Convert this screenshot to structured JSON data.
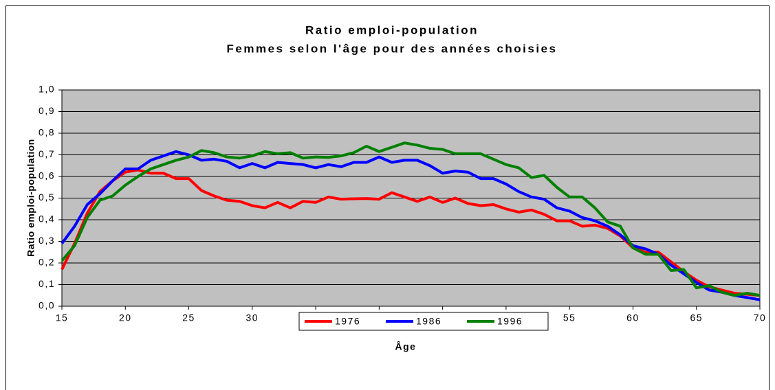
{
  "chart_data": {
    "type": "line",
    "title": "Ratio emploi-population",
    "subtitle": "Femmes selon l'âge pour des années choisies",
    "x_label": "Âge",
    "y_label": "Ratio emploi-population",
    "x": [
      15,
      16,
      17,
      18,
      19,
      20,
      21,
      22,
      23,
      24,
      25,
      26,
      27,
      28,
      29,
      30,
      31,
      32,
      33,
      34,
      35,
      36,
      37,
      38,
      39,
      40,
      41,
      42,
      43,
      44,
      45,
      46,
      47,
      48,
      49,
      50,
      51,
      52,
      53,
      54,
      55,
      56,
      57,
      58,
      59,
      60,
      61,
      62,
      63,
      64,
      65,
      66,
      67,
      68,
      69,
      70
    ],
    "series": [
      {
        "name": "1976",
        "color": "#ff0000",
        "values": [
          0.17,
          0.29,
          0.43,
          0.53,
          0.58,
          0.62,
          0.63,
          0.615,
          0.615,
          0.59,
          0.59,
          0.535,
          0.51,
          0.49,
          0.485,
          0.465,
          0.455,
          0.48,
          0.455,
          0.485,
          0.48,
          0.505,
          0.495,
          0.497,
          0.498,
          0.495,
          0.525,
          0.505,
          0.485,
          0.505,
          0.48,
          0.5,
          0.475,
          0.465,
          0.47,
          0.45,
          0.435,
          0.445,
          0.425,
          0.395,
          0.395,
          0.37,
          0.375,
          0.36,
          0.325,
          0.27,
          0.25,
          0.25,
          0.205,
          0.16,
          0.12,
          0.09,
          0.075,
          0.06,
          0.055,
          0.05
        ]
      },
      {
        "name": "1986",
        "color": "#0000ff",
        "values": [
          0.29,
          0.37,
          0.47,
          0.52,
          0.58,
          0.635,
          0.635,
          0.675,
          0.695,
          0.715,
          0.7,
          0.675,
          0.68,
          0.67,
          0.64,
          0.66,
          0.64,
          0.665,
          0.66,
          0.655,
          0.64,
          0.655,
          0.645,
          0.665,
          0.665,
          0.69,
          0.665,
          0.675,
          0.675,
          0.65,
          0.615,
          0.625,
          0.62,
          0.59,
          0.59,
          0.565,
          0.53,
          0.505,
          0.495,
          0.455,
          0.44,
          0.41,
          0.395,
          0.37,
          0.33,
          0.28,
          0.265,
          0.24,
          0.19,
          0.15,
          0.11,
          0.075,
          0.065,
          0.05,
          0.04,
          0.03
        ]
      },
      {
        "name": "1996",
        "color": "#008000",
        "values": [
          0.21,
          0.28,
          0.41,
          0.49,
          0.51,
          0.56,
          0.6,
          0.635,
          0.655,
          0.675,
          0.69,
          0.72,
          0.71,
          0.69,
          0.685,
          0.695,
          0.715,
          0.705,
          0.71,
          0.685,
          0.69,
          0.688,
          0.695,
          0.71,
          0.74,
          0.715,
          0.735,
          0.755,
          0.745,
          0.73,
          0.725,
          0.705,
          0.705,
          0.705,
          0.68,
          0.655,
          0.64,
          0.595,
          0.605,
          0.55,
          0.505,
          0.505,
          0.455,
          0.39,
          0.37,
          0.27,
          0.24,
          0.24,
          0.165,
          0.17,
          0.085,
          0.095,
          0.065,
          0.05,
          0.06,
          0.05
        ]
      }
    ],
    "xlim": [
      15,
      70
    ],
    "xticks": [
      15,
      20,
      25,
      30,
      35,
      40,
      45,
      50,
      55,
      60,
      65,
      70
    ],
    "ylim": [
      0,
      1
    ],
    "yticks": [
      {
        "value": 0,
        "label": "0,0"
      },
      {
        "value": 0.1,
        "label": "0,1"
      },
      {
        "value": 0.2,
        "label": "0,2"
      },
      {
        "value": 0.3,
        "label": "0,3"
      },
      {
        "value": 0.4,
        "label": "0,4"
      },
      {
        "value": 0.5,
        "label": "0,5"
      },
      {
        "value": 0.6,
        "label": "0,6"
      },
      {
        "value": 0.7,
        "label": "0,7"
      },
      {
        "value": 0.8,
        "label": "0,8"
      },
      {
        "value": 0.9,
        "label": "0,9"
      },
      {
        "value": 1,
        "label": "1,0"
      }
    ],
    "grid": true,
    "legend": "bottom",
    "plot_background": "#c0c0c0"
  }
}
